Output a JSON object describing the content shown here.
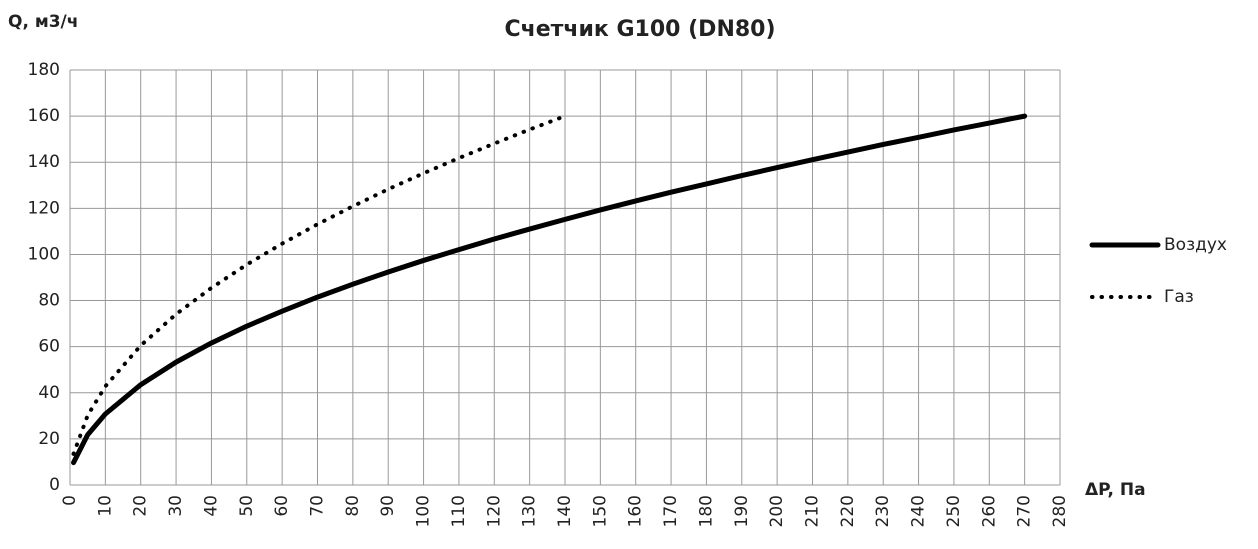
{
  "chart_data": {
    "type": "line",
    "title": "Счетчик G100 (DN80)",
    "y_label": "Q, м3/ч",
    "x_label": "ΔP, Па",
    "grid": true,
    "legend": "right",
    "xlim": [
      0,
      280
    ],
    "ylim": [
      0,
      180
    ],
    "xticks": [
      0,
      10,
      20,
      30,
      40,
      50,
      60,
      70,
      80,
      90,
      100,
      110,
      120,
      130,
      140,
      150,
      160,
      170,
      180,
      190,
      200,
      210,
      220,
      230,
      240,
      250,
      260,
      270,
      280
    ],
    "yticks": [
      0,
      20,
      40,
      60,
      80,
      100,
      120,
      140,
      160,
      180
    ],
    "series": [
      {
        "name": "Воздух",
        "color": "#000000",
        "style": "solid",
        "x": [
          1,
          5,
          10,
          20,
          30,
          40,
          50,
          60,
          70,
          80,
          90,
          100,
          110,
          120,
          130,
          140,
          150,
          160,
          170,
          180,
          190,
          200,
          210,
          220,
          230,
          240,
          250,
          260,
          270
        ],
        "values": [
          9.7,
          21.8,
          30.8,
          43.5,
          53.3,
          61.6,
          68.9,
          75.4,
          81.5,
          87.1,
          92.4,
          97.4,
          102.1,
          106.7,
          111,
          115.2,
          119.3,
          123.2,
          127,
          130.6,
          134.2,
          137.7,
          141.1,
          144.4,
          147.7,
          150.8,
          154,
          157,
          160
        ]
      },
      {
        "name": "Газ",
        "color": "#000000",
        "style": "dotted",
        "x": [
          1,
          5,
          10,
          20,
          30,
          40,
          50,
          60,
          70,
          80,
          90,
          100,
          110,
          120,
          130,
          140
        ],
        "values": [
          13.5,
          30.2,
          42.8,
          60.5,
          74.1,
          85.5,
          95.6,
          104.7,
          113.1,
          120.9,
          128.3,
          135.2,
          141.8,
          148.1,
          154.2,
          160
        ]
      }
    ]
  }
}
